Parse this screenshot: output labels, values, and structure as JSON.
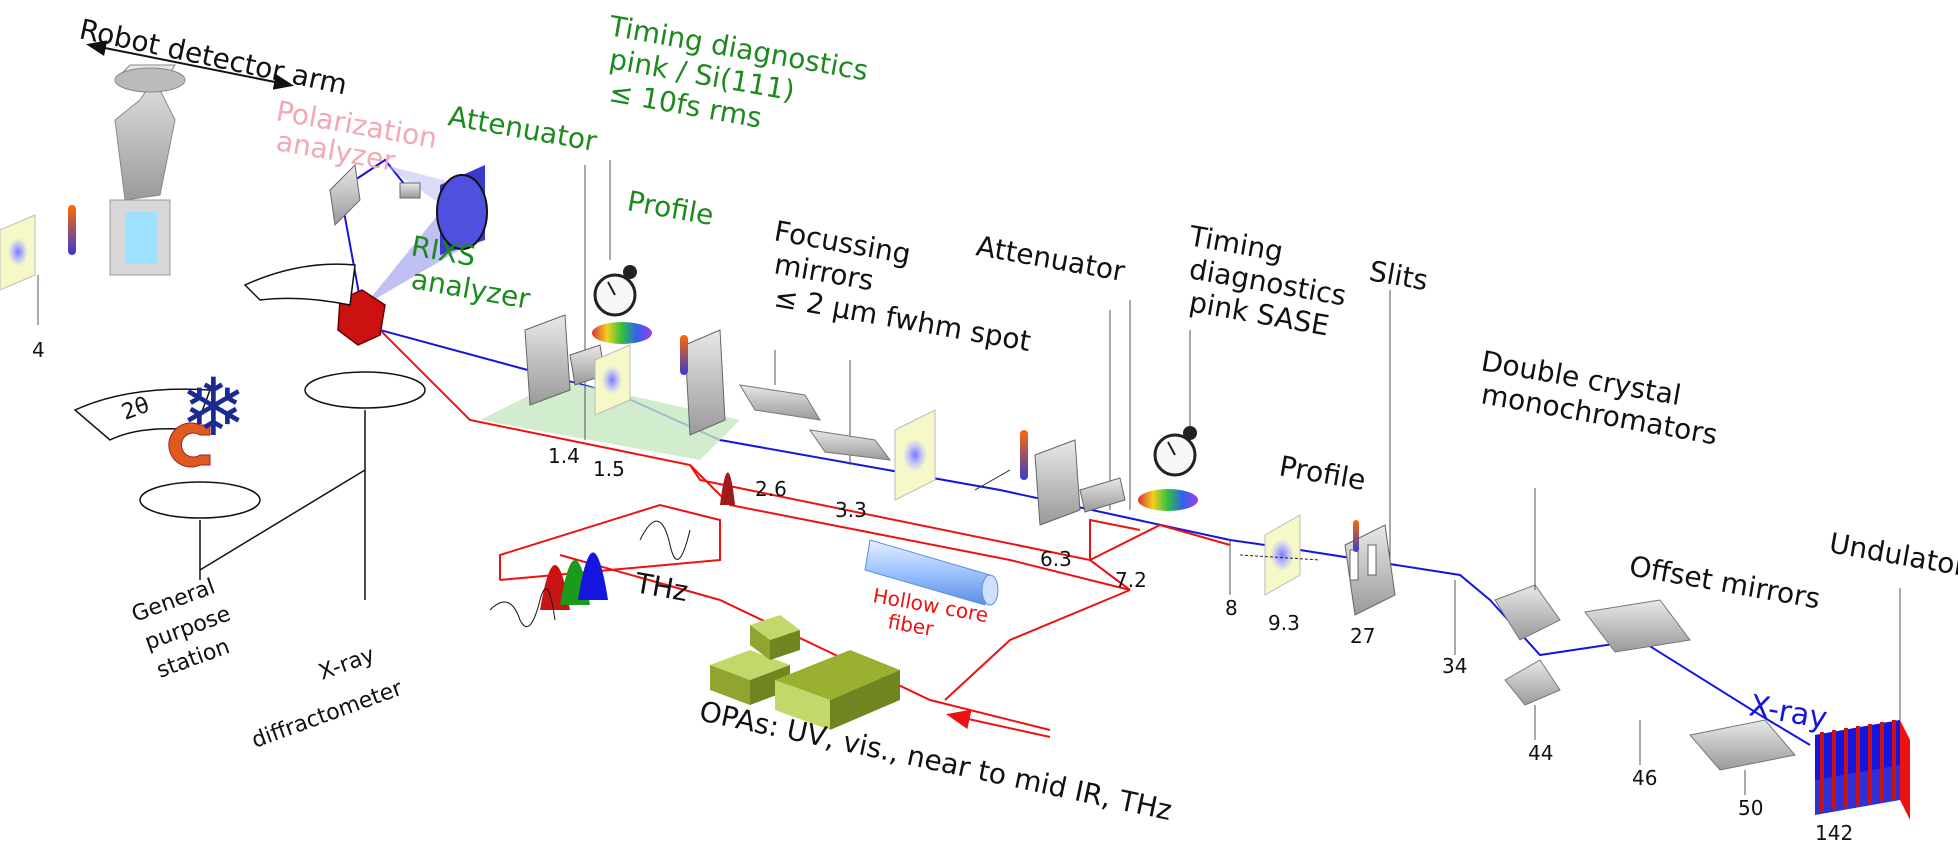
{
  "labels": {
    "robot_arm": "Robot detector arm",
    "polarization_1": "Polarization",
    "polarization_2": "analyzer",
    "rixs_1": "RIXS",
    "rixs_2": "analyzer",
    "attenuator_near": "Attenuator",
    "timing_green_1": "Timing diagnostics",
    "timing_green_2": "pink / Si(111)",
    "timing_green_3": "≤ 10fs rms",
    "profile_green": "Profile",
    "focus_1": "Focussing",
    "focus_2": "mirrors",
    "focus_3": "≤ 2 µm fwhm spot",
    "attenuator_far": "Attenuator",
    "timing_sase_1": "Timing",
    "timing_sase_2": "diagnostics",
    "timing_sase_3": "pink SASE",
    "slits": "Slits",
    "dcm_1": "Double crystal",
    "dcm_2": "monochromators",
    "offset_mirrors": "Offset mirrors",
    "undulator": "Undulator",
    "xray": "X-ray",
    "profile_far": "Profile",
    "thz": "THz",
    "hollow_1": "Hollow core",
    "hollow_2": "fiber",
    "opas": "OPAs: UV, vis., near to mid IR, THz",
    "general_1": "General",
    "general_2": "purpose",
    "general_3": "station",
    "xrd_1": "X-ray",
    "xrd_2": "diffractometer",
    "two_theta": "2θ"
  },
  "distances": {
    "d4": "4",
    "d1_4": "1.4",
    "d1_5": "1.5",
    "d2_6": "2.6",
    "d3_3": "3.3",
    "d6_3": "6.3",
    "d7_2": "7.2",
    "d8": "8",
    "d9_3": "9.3",
    "d27": "27",
    "d34": "34",
    "d44": "44",
    "d46": "46",
    "d50": "50",
    "d142": "142"
  },
  "colors": {
    "beam": "#1515e0",
    "laser": "#ee1111",
    "green_label": "#1d8a1d",
    "pink_label": "#f3a9b3",
    "opa": "#a6c23a",
    "sample": "#cc1111"
  }
}
